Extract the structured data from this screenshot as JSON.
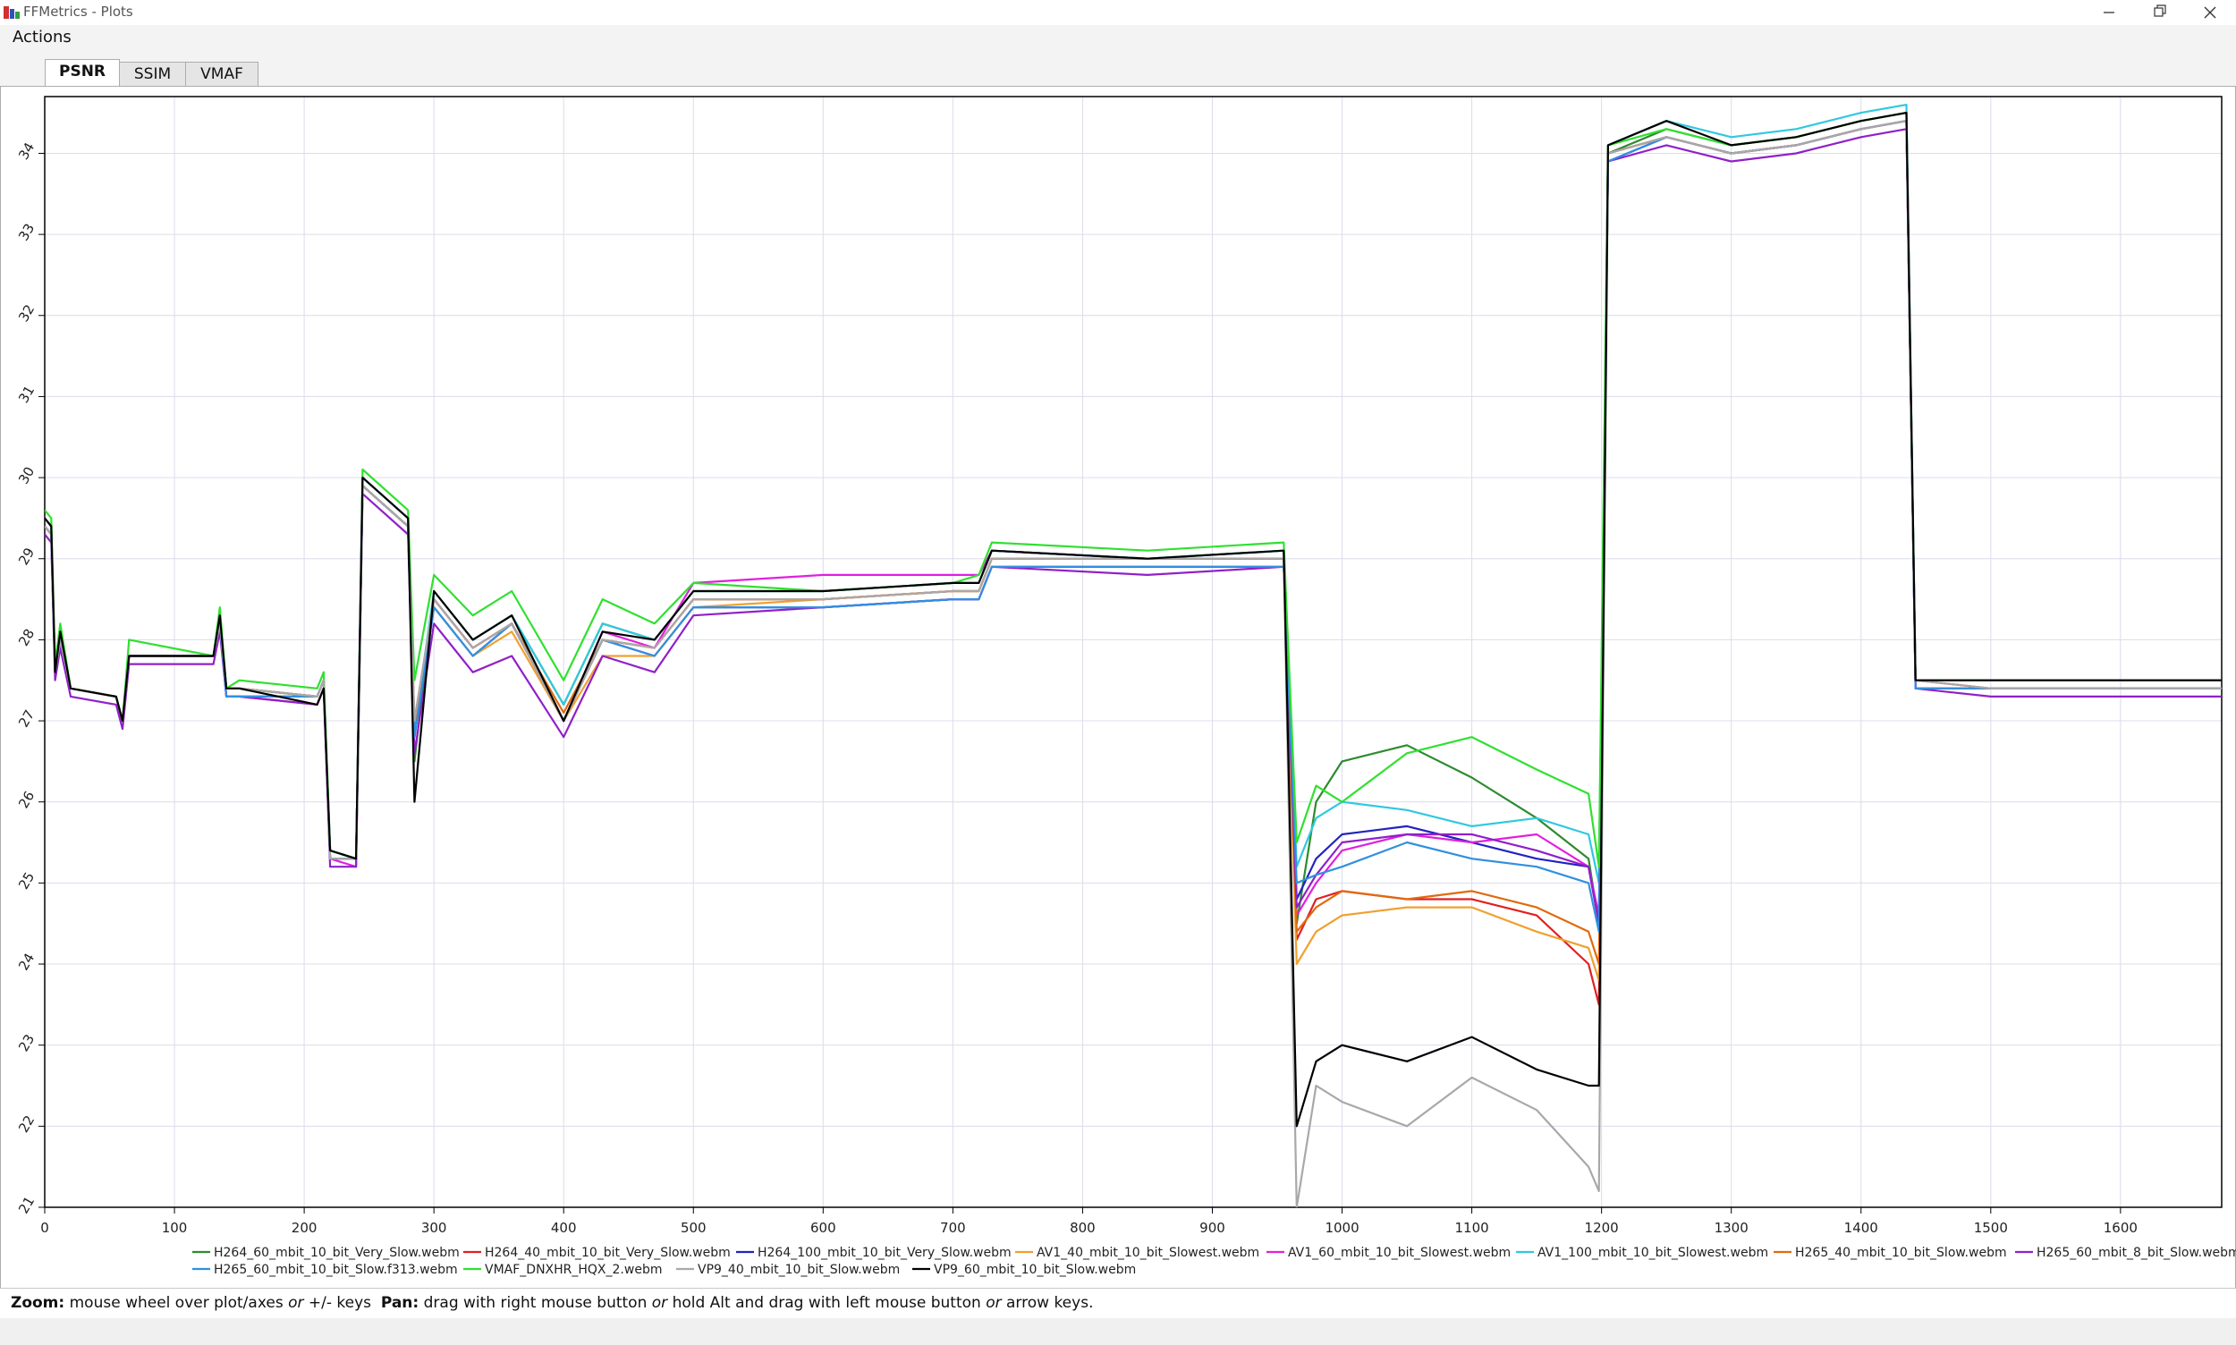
{
  "window": {
    "title": "FFMetrics - Plots"
  },
  "menu": [
    "Actions"
  ],
  "tabs": [
    "PSNR",
    "SSIM",
    "VMAF"
  ],
  "chart_data": {
    "type": "line",
    "grid": true,
    "xlim": [
      0,
      1678
    ],
    "ylim": [
      21,
      34.7
    ],
    "xticks": [
      0,
      100,
      200,
      300,
      400,
      500,
      600,
      700,
      800,
      900,
      1000,
      1100,
      1200,
      1300,
      1400,
      1500,
      1600
    ],
    "yticks": [
      21,
      22,
      23,
      24,
      25,
      26,
      27,
      28,
      29,
      30,
      31,
      32,
      33,
      34
    ],
    "x": [
      0,
      5,
      8,
      12,
      20,
      55,
      60,
      65,
      130,
      135,
      140,
      150,
      210,
      215,
      220,
      240,
      245,
      280,
      285,
      300,
      330,
      360,
      400,
      430,
      470,
      500,
      600,
      700,
      720,
      730,
      850,
      955,
      965,
      980,
      1000,
      1050,
      1100,
      1150,
      1190,
      1198,
      1205,
      1250,
      1300,
      1350,
      1400,
      1435,
      1442,
      1500,
      1600,
      1680
    ],
    "series": [
      {
        "name": "H264_60_mbit_10_bit_Very_Slow.webm",
        "color": "#2e8b2e",
        "values": [
          29.5,
          29.4,
          27.6,
          28.1,
          27.4,
          27.3,
          27.0,
          27.8,
          27.8,
          28.3,
          27.4,
          27.4,
          27.3,
          27.5,
          25.4,
          25.3,
          30.0,
          29.5,
          26.5,
          28.6,
          28.0,
          28.3,
          27.2,
          28.2,
          28.0,
          28.6,
          28.6,
          28.7,
          28.7,
          29.1,
          29.0,
          29.1,
          24.5,
          26.0,
          26.5,
          26.7,
          26.3,
          25.8,
          25.3,
          24.5,
          34.0,
          34.3,
          34.1,
          34.2,
          34.4,
          34.5,
          27.5,
          27.5,
          27.5,
          27.5
        ]
      },
      {
        "name": "H264_40_mbit_10_bit_Very_Slow.webm",
        "color": "#e02020",
        "values": [
          29.4,
          29.3,
          27.6,
          28.0,
          27.4,
          27.3,
          27.0,
          27.8,
          27.8,
          28.2,
          27.4,
          27.4,
          27.3,
          27.5,
          25.3,
          25.3,
          29.9,
          29.4,
          27.0,
          28.5,
          27.9,
          28.2,
          27.0,
          28.0,
          27.9,
          28.5,
          28.5,
          28.6,
          28.6,
          29.0,
          29.0,
          29.0,
          24.3,
          24.8,
          24.9,
          24.8,
          24.8,
          24.6,
          24.0,
          23.5,
          34.0,
          34.2,
          34.0,
          34.1,
          34.3,
          34.4,
          27.5,
          27.4,
          27.4,
          27.4
        ]
      },
      {
        "name": "H264_100_mbit_10_bit_Very_Slow.webm",
        "color": "#2222c0",
        "values": [
          29.4,
          29.3,
          27.6,
          28.0,
          27.4,
          27.3,
          27.0,
          27.8,
          27.8,
          28.2,
          27.3,
          27.3,
          27.3,
          27.5,
          25.3,
          25.3,
          29.9,
          29.4,
          26.8,
          28.4,
          27.8,
          28.2,
          27.0,
          28.0,
          27.8,
          28.4,
          28.4,
          28.5,
          28.5,
          28.9,
          28.9,
          28.9,
          24.8,
          25.3,
          25.6,
          25.7,
          25.5,
          25.3,
          25.2,
          24.5,
          33.9,
          34.2,
          34.0,
          34.1,
          34.3,
          34.4,
          27.4,
          27.4,
          27.4,
          27.4
        ]
      },
      {
        "name": "AV1_40_mbit_10_bit_Slowest.webm",
        "color": "#f0a030",
        "values": [
          29.4,
          29.3,
          27.6,
          28.0,
          27.4,
          27.3,
          27.0,
          27.8,
          27.8,
          28.2,
          27.4,
          27.4,
          27.3,
          27.5,
          25.3,
          25.3,
          29.9,
          29.4,
          26.9,
          28.4,
          27.8,
          28.1,
          27.0,
          27.8,
          27.8,
          28.4,
          28.5,
          28.6,
          28.6,
          29.0,
          29.0,
          29.0,
          24.0,
          24.4,
          24.6,
          24.7,
          24.7,
          24.4,
          24.2,
          23.8,
          34.0,
          34.2,
          34.0,
          34.1,
          34.3,
          34.4,
          27.4,
          27.4,
          27.4,
          27.4
        ]
      },
      {
        "name": "AV1_60_mbit_10_bit_Slowest.webm",
        "color": "#e020e0",
        "values": [
          29.4,
          29.3,
          27.6,
          28.0,
          27.4,
          27.3,
          27.0,
          27.8,
          27.8,
          28.2,
          27.3,
          27.3,
          27.2,
          27.4,
          25.3,
          25.2,
          29.9,
          29.4,
          26.8,
          28.5,
          27.9,
          28.2,
          27.0,
          28.1,
          27.9,
          28.7,
          28.8,
          28.8,
          28.8,
          29.1,
          29.0,
          29.0,
          24.6,
          25.0,
          25.4,
          25.6,
          25.5,
          25.6,
          25.2,
          24.6,
          34.0,
          34.2,
          34.0,
          34.1,
          34.3,
          34.4,
          27.4,
          27.4,
          27.4,
          27.4
        ]
      },
      {
        "name": "AV1_100_mbit_10_bit_Slowest.webm",
        "color": "#30c8e0",
        "values": [
          29.5,
          29.4,
          27.6,
          28.1,
          27.4,
          27.3,
          27.0,
          27.8,
          27.8,
          28.3,
          27.4,
          27.4,
          27.3,
          27.5,
          25.4,
          25.3,
          30.0,
          29.5,
          26.9,
          28.6,
          28.0,
          28.3,
          27.2,
          28.2,
          28.0,
          28.6,
          28.6,
          28.7,
          28.7,
          29.1,
          29.0,
          29.1,
          25.2,
          25.8,
          26.0,
          25.9,
          25.7,
          25.8,
          25.6,
          25.0,
          34.1,
          34.4,
          34.2,
          34.3,
          34.5,
          34.6,
          27.5,
          27.5,
          27.5,
          27.5
        ]
      },
      {
        "name": "H265_40_mbit_10_bit_Slow.webm",
        "color": "#e06a10",
        "values": [
          29.4,
          29.3,
          27.6,
          28.0,
          27.4,
          27.3,
          27.0,
          27.8,
          27.8,
          28.2,
          27.4,
          27.4,
          27.3,
          27.5,
          25.3,
          25.3,
          29.9,
          29.4,
          26.9,
          28.5,
          27.9,
          28.2,
          27.1,
          28.0,
          27.9,
          28.5,
          28.5,
          28.6,
          28.6,
          29.0,
          29.0,
          29.0,
          24.4,
          24.7,
          24.9,
          24.8,
          24.9,
          24.7,
          24.4,
          24.0,
          34.0,
          34.2,
          34.0,
          34.1,
          34.3,
          34.4,
          27.4,
          27.4,
          27.4,
          27.4
        ]
      },
      {
        "name": "H265_60_mbit_8_bit_Slow.webm",
        "color": "#9020c8",
        "values": [
          29.3,
          29.2,
          27.5,
          27.9,
          27.3,
          27.2,
          26.9,
          27.7,
          27.7,
          28.1,
          27.3,
          27.3,
          27.2,
          27.4,
          25.2,
          25.2,
          29.8,
          29.3,
          26.6,
          28.2,
          27.6,
          27.8,
          26.8,
          27.8,
          27.6,
          28.3,
          28.4,
          28.5,
          28.5,
          28.9,
          28.8,
          28.9,
          24.7,
          25.1,
          25.5,
          25.6,
          25.6,
          25.4,
          25.2,
          24.5,
          33.9,
          34.1,
          33.9,
          34.0,
          34.2,
          34.3,
          27.4,
          27.3,
          27.3,
          27.3
        ]
      },
      {
        "name": "H265_60_mbit_10_bit_Slow.f313.webm",
        "color": "#3090e0",
        "values": [
          29.4,
          29.3,
          27.6,
          28.0,
          27.4,
          27.3,
          27.0,
          27.8,
          27.8,
          28.2,
          27.3,
          27.3,
          27.3,
          27.5,
          25.3,
          25.3,
          29.9,
          29.4,
          26.8,
          28.4,
          27.8,
          28.2,
          27.0,
          28.0,
          27.8,
          28.4,
          28.4,
          28.5,
          28.5,
          28.9,
          28.9,
          28.9,
          25.0,
          25.1,
          25.2,
          25.5,
          25.3,
          25.2,
          25.0,
          24.4,
          33.9,
          34.2,
          34.0,
          34.1,
          34.3,
          34.4,
          27.4,
          27.4,
          27.4,
          27.4
        ]
      },
      {
        "name": "VMAF_DNXHR_HQX_2.webm",
        "color": "#30e030",
        "values": [
          29.6,
          29.5,
          27.7,
          28.2,
          27.4,
          27.3,
          27.0,
          28.0,
          27.8,
          28.4,
          27.4,
          27.5,
          27.4,
          27.6,
          25.4,
          25.3,
          30.1,
          29.6,
          27.5,
          28.8,
          28.3,
          28.6,
          27.5,
          28.5,
          28.2,
          28.7,
          28.6,
          28.7,
          28.8,
          29.2,
          29.1,
          29.2,
          25.5,
          26.2,
          26.0,
          26.6,
          26.8,
          26.4,
          26.1,
          25.2,
          34.1,
          34.3,
          34.1,
          34.2,
          34.4,
          34.5,
          27.5,
          27.5,
          27.5,
          27.5
        ]
      },
      {
        "name": "VP9_40_mbit_10_bit_Slow.webm",
        "color": "#a8a8a8",
        "values": [
          29.4,
          29.3,
          27.6,
          28.0,
          27.4,
          27.3,
          27.0,
          27.8,
          27.8,
          28.2,
          27.4,
          27.4,
          27.3,
          27.5,
          25.3,
          25.3,
          29.9,
          29.4,
          27.0,
          28.5,
          27.9,
          28.2,
          27.0,
          28.0,
          27.9,
          28.5,
          28.5,
          28.6,
          28.6,
          29.0,
          29.0,
          29.0,
          21.0,
          22.5,
          22.3,
          22.0,
          22.6,
          22.2,
          21.5,
          21.2,
          34.0,
          34.2,
          34.0,
          34.1,
          34.3,
          34.4,
          27.5,
          27.4,
          27.4,
          27.4
        ]
      },
      {
        "name": "VP9_60_mbit_10_bit_Slow.webm",
        "color": "#000000",
        "values": [
          29.5,
          29.4,
          27.6,
          28.1,
          27.4,
          27.3,
          27.0,
          27.8,
          27.8,
          28.3,
          27.4,
          27.4,
          27.2,
          27.4,
          25.4,
          25.3,
          30.0,
          29.5,
          26.0,
          28.6,
          28.0,
          28.3,
          27.0,
          28.1,
          28.0,
          28.6,
          28.6,
          28.7,
          28.7,
          29.1,
          29.0,
          29.1,
          22.0,
          22.8,
          23.0,
          22.8,
          23.1,
          22.7,
          22.5,
          22.5,
          34.1,
          34.4,
          34.1,
          34.2,
          34.4,
          34.5,
          27.5,
          27.5,
          27.5,
          27.5
        ]
      }
    ]
  },
  "status_bar": {
    "parts": [
      "Zoom:",
      "mouse wheel over plot/axes",
      "or",
      "+/- keys",
      "Pan:",
      "drag with right mouse button",
      "or",
      "hold Alt and drag with left mouse button",
      "or",
      "arrow keys."
    ]
  }
}
